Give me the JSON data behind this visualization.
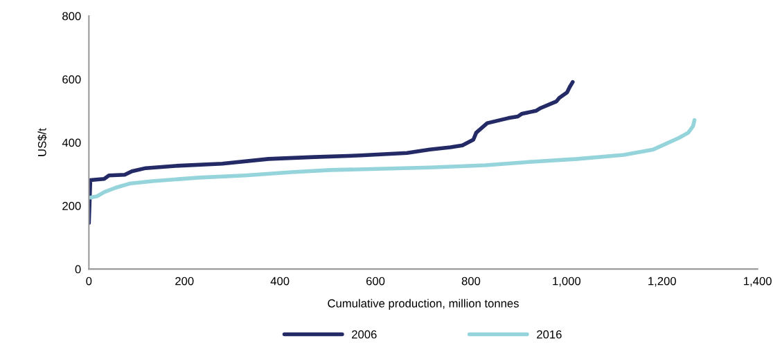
{
  "chart_data": {
    "type": "line",
    "xlabel": "Cumulative production, million tonnes",
    "ylabel": "US$/t",
    "xlim": [
      0,
      1400
    ],
    "ylim": [
      0,
      800
    ],
    "xticks": [
      0,
      200,
      400,
      600,
      800,
      {
        "value": 1000,
        "label": "1,000"
      },
      {
        "value": 1200,
        "label": "1,200"
      },
      {
        "value": 1400,
        "label": "1,400"
      }
    ],
    "yticks": [
      0,
      200,
      400,
      600,
      800
    ],
    "grid": false,
    "legend": "bottom",
    "marker": "none",
    "line_style": "solid",
    "series": [
      {
        "name": "2006",
        "color": "#232a66",
        "x": [
          0,
          3,
          32,
          42,
          75,
          90,
          119,
          181,
          279,
          376,
          472,
          569,
          666,
          685,
          714,
          757,
          782,
          805,
          811,
          834,
          878,
          898,
          907,
          936,
          946,
          979,
          985,
          1001,
          1007,
          1013
        ],
        "values": [
          146,
          281,
          285,
          296,
          298,
          309,
          319,
          326,
          333,
          348,
          354,
          359,
          367,
          371,
          378,
          385,
          391,
          409,
          431,
          461,
          477,
          482,
          491,
          500,
          509,
          530,
          541,
          558,
          576,
          591
        ]
      },
      {
        "name": "2016",
        "color": "#96d4dc",
        "x": [
          3,
          17,
          32,
          56,
          85,
          133,
          231,
          327,
          424,
          506,
          617,
          714,
          830,
          927,
          1023,
          1120,
          1182,
          1236,
          1255,
          1265,
          1268
        ],
        "values": [
          226,
          230,
          243,
          257,
          270,
          278,
          289,
          296,
          306,
          313,
          317,
          321,
          328,
          339,
          348,
          361,
          378,
          415,
          431,
          452,
          471
        ]
      }
    ]
  }
}
